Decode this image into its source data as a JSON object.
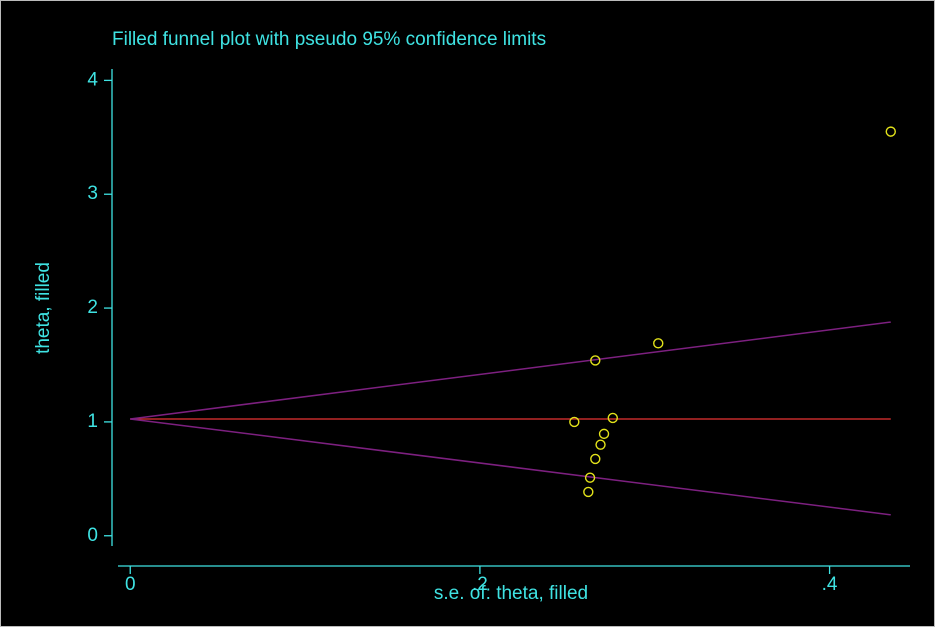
{
  "chart_data": {
    "type": "scatter",
    "title": "Filled funnel plot with pseudo 95% confidence limits",
    "x_label": "s.e. of: theta, filled",
    "y_label": "theta, filled",
    "x": [
      0.435,
      0.302,
      0.266,
      0.254,
      0.276,
      0.271,
      0.269,
      0.266,
      0.263,
      0.262
    ],
    "values": [
      3.55,
      1.69,
      1.54,
      1.0,
      1.035,
      0.895,
      0.8,
      0.675,
      0.51,
      0.385
    ],
    "color": "#e3e31a",
    "lines": [
      {
        "color": "#c22a2a",
        "x": [
          0,
          0.435
        ],
        "values": [
          1.026,
          1.026
        ]
      },
      {
        "color": "#7d2080",
        "x": [
          0,
          0.435
        ],
        "values": [
          1.026,
          1.877
        ]
      },
      {
        "color": "#7d2080",
        "x": [
          0,
          0.435
        ],
        "values": [
          1.026,
          0.184
        ]
      }
    ],
    "xlim": [
      -0.007,
      0.446
    ],
    "ylim": [
      -0.09,
      4.1
    ],
    "xticks": [
      0,
      {
        "value": 0.2,
        "label": ".2"
      },
      {
        "value": 0.4,
        "label": ".4"
      }
    ],
    "yticks": [
      0,
      1,
      2,
      3,
      4
    ],
    "grid": false
  }
}
